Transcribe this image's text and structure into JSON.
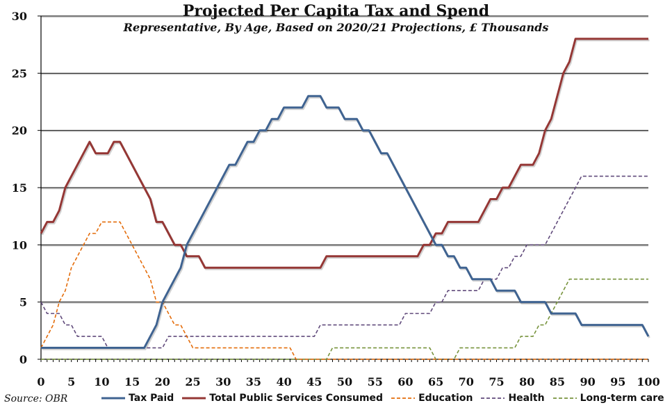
{
  "chart_data": {
    "type": "line",
    "title": "Projected Per Capita Tax and Spend",
    "subtitle": "Representative, By Age, Based on 2020/21 Projections, £ Thousands",
    "source": "Source: OBR",
    "xlabel": "",
    "ylabel": "",
    "xlim": [
      0,
      100
    ],
    "ylim": [
      0,
      30
    ],
    "x_ticks": [
      0,
      5,
      10,
      15,
      20,
      25,
      30,
      35,
      40,
      45,
      50,
      55,
      60,
      65,
      70,
      75,
      80,
      85,
      90,
      95,
      100
    ],
    "y_ticks": [
      0,
      5,
      10,
      15,
      20,
      25,
      30
    ],
    "grid": "horizontal",
    "legend_position": "bottom",
    "series": [
      {
        "name": "Tax Paid",
        "color": "#3f6391",
        "style": "solid",
        "points": [
          [
            0,
            1
          ],
          [
            17,
            1
          ],
          [
            18,
            2
          ],
          [
            19,
            3
          ],
          [
            20,
            5
          ],
          [
            21,
            6
          ],
          [
            22,
            7
          ],
          [
            23,
            8
          ],
          [
            24,
            10
          ],
          [
            25,
            11
          ],
          [
            26,
            12
          ],
          [
            27,
            13
          ],
          [
            28,
            14
          ],
          [
            29,
            15
          ],
          [
            30,
            16
          ],
          [
            31,
            17
          ],
          [
            32,
            17
          ],
          [
            33,
            18
          ],
          [
            34,
            19
          ],
          [
            35,
            19
          ],
          [
            36,
            20
          ],
          [
            37,
            20
          ],
          [
            38,
            21
          ],
          [
            39,
            21
          ],
          [
            40,
            22
          ],
          [
            43,
            22
          ],
          [
            44,
            23
          ],
          [
            46,
            23
          ],
          [
            47,
            22
          ],
          [
            49,
            22
          ],
          [
            50,
            21
          ],
          [
            52,
            21
          ],
          [
            53,
            20
          ],
          [
            54,
            20
          ],
          [
            55,
            19
          ],
          [
            56,
            18
          ],
          [
            57,
            18
          ],
          [
            58,
            17
          ],
          [
            59,
            16
          ],
          [
            60,
            15
          ],
          [
            61,
            14
          ],
          [
            62,
            13
          ],
          [
            63,
            12
          ],
          [
            64,
            11
          ],
          [
            65,
            10
          ],
          [
            66,
            10
          ],
          [
            67,
            9
          ],
          [
            68,
            9
          ],
          [
            69,
            8
          ],
          [
            70,
            8
          ],
          [
            71,
            7
          ],
          [
            74,
            7
          ],
          [
            75,
            6
          ],
          [
            78,
            6
          ],
          [
            79,
            5
          ],
          [
            82,
            5
          ],
          [
            83,
            5
          ],
          [
            84,
            4
          ],
          [
            88,
            4
          ],
          [
            89,
            3
          ],
          [
            95,
            3
          ],
          [
            99,
            3
          ],
          [
            100,
            2
          ]
        ]
      },
      {
        "name": "Total Public Services Consumed",
        "color": "#953735",
        "style": "solid",
        "points": [
          [
            0,
            11
          ],
          [
            1,
            12
          ],
          [
            2,
            12
          ],
          [
            3,
            13
          ],
          [
            4,
            15
          ],
          [
            5,
            16
          ],
          [
            6,
            17
          ],
          [
            7,
            18
          ],
          [
            8,
            19
          ],
          [
            9,
            18
          ],
          [
            11,
            18
          ],
          [
            12,
            19
          ],
          [
            13,
            19
          ],
          [
            14,
            18
          ],
          [
            15,
            17
          ],
          [
            16,
            16
          ],
          [
            17,
            15
          ],
          [
            18,
            14
          ],
          [
            19,
            12
          ],
          [
            20,
            12
          ],
          [
            21,
            11
          ],
          [
            22,
            10
          ],
          [
            23,
            10
          ],
          [
            24,
            9
          ],
          [
            25,
            9
          ],
          [
            26,
            9
          ],
          [
            27,
            8
          ],
          [
            46,
            8
          ],
          [
            47,
            9
          ],
          [
            62,
            9
          ],
          [
            63,
            10
          ],
          [
            64,
            10
          ],
          [
            65,
            11
          ],
          [
            66,
            11
          ],
          [
            67,
            12
          ],
          [
            72,
            12
          ],
          [
            73,
            13
          ],
          [
            74,
            14
          ],
          [
            75,
            14
          ],
          [
            76,
            15
          ],
          [
            77,
            15
          ],
          [
            78,
            16
          ],
          [
            79,
            17
          ],
          [
            81,
            17
          ],
          [
            82,
            18
          ],
          [
            83,
            20
          ],
          [
            84,
            21
          ],
          [
            85,
            23
          ],
          [
            86,
            25
          ],
          [
            87,
            26
          ],
          [
            88,
            28
          ],
          [
            100,
            28
          ]
        ]
      },
      {
        "name": "Education",
        "color": "#e46c0a",
        "style": "dashed",
        "points": [
          [
            0,
            1
          ],
          [
            1,
            2
          ],
          [
            2,
            3
          ],
          [
            3,
            5
          ],
          [
            4,
            6
          ],
          [
            5,
            8
          ],
          [
            6,
            9
          ],
          [
            7,
            10
          ],
          [
            8,
            11
          ],
          [
            9,
            11
          ],
          [
            10,
            12
          ],
          [
            13,
            12
          ],
          [
            14,
            11
          ],
          [
            15,
            10
          ],
          [
            16,
            9
          ],
          [
            17,
            8
          ],
          [
            18,
            7
          ],
          [
            19,
            5
          ],
          [
            20,
            5
          ],
          [
            21,
            4
          ],
          [
            22,
            3
          ],
          [
            23,
            3
          ],
          [
            24,
            2
          ],
          [
            25,
            1
          ],
          [
            41,
            1
          ],
          [
            42,
            0
          ],
          [
            100,
            0
          ]
        ]
      },
      {
        "name": "Health",
        "color": "#604a7b",
        "style": "dashed",
        "points": [
          [
            0,
            5
          ],
          [
            1,
            4
          ],
          [
            3,
            4
          ],
          [
            4,
            3
          ],
          [
            5,
            3
          ],
          [
            6,
            2
          ],
          [
            10,
            2
          ],
          [
            11,
            1
          ],
          [
            20,
            1
          ],
          [
            21,
            2
          ],
          [
            45,
            2
          ],
          [
            46,
            3
          ],
          [
            59,
            3
          ],
          [
            60,
            4
          ],
          [
            64,
            4
          ],
          [
            65,
            5
          ],
          [
            66,
            5
          ],
          [
            67,
            6
          ],
          [
            72,
            6
          ],
          [
            73,
            7
          ],
          [
            75,
            7
          ],
          [
            76,
            8
          ],
          [
            77,
            8
          ],
          [
            78,
            9
          ],
          [
            79,
            9
          ],
          [
            80,
            10
          ],
          [
            83,
            10
          ],
          [
            84,
            11
          ],
          [
            85,
            12
          ],
          [
            86,
            13
          ],
          [
            87,
            14
          ],
          [
            88,
            15
          ],
          [
            89,
            16
          ],
          [
            100,
            16
          ]
        ]
      },
      {
        "name": "Long-term care",
        "color": "#77933c",
        "style": "dashed",
        "points": [
          [
            0,
            0
          ],
          [
            47,
            0
          ],
          [
            48,
            1
          ],
          [
            64,
            1
          ],
          [
            65,
            0
          ],
          [
            68,
            0
          ],
          [
            69,
            1
          ],
          [
            78,
            1
          ],
          [
            79,
            2
          ],
          [
            81,
            2
          ],
          [
            82,
            3
          ],
          [
            83,
            3
          ],
          [
            84,
            4
          ],
          [
            85,
            5
          ],
          [
            86,
            6
          ],
          [
            87,
            7
          ],
          [
            88,
            7
          ],
          [
            100,
            7
          ]
        ]
      }
    ]
  }
}
